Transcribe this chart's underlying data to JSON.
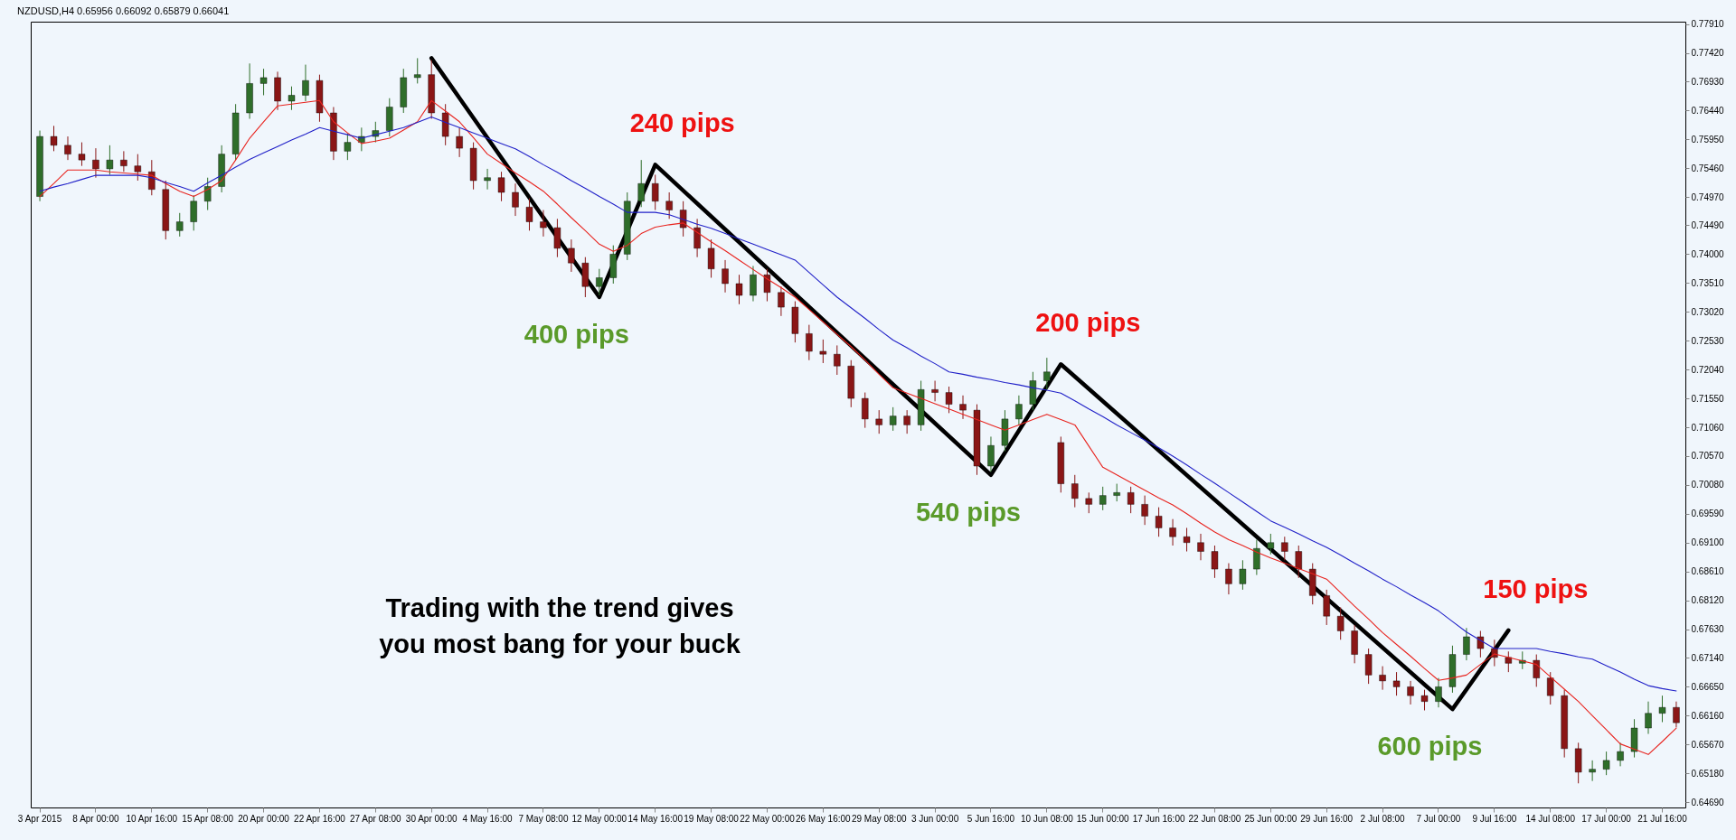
{
  "chart_data": {
    "type": "candlestick",
    "title": "NZDUSD,H4  0.65956 0.66092 0.65879 0.66041",
    "categories": [
      "3 Apr 2015",
      null,
      null,
      null,
      "8 Apr 00:00",
      null,
      null,
      null,
      "10 Apr 16:00",
      null,
      null,
      null,
      "15 Apr 08:00",
      null,
      null,
      null,
      "20 Apr 00:00",
      null,
      null,
      null,
      "22 Apr 16:00",
      null,
      null,
      null,
      "27 Apr 08:00",
      null,
      null,
      null,
      "30 Apr 00:00",
      null,
      null,
      null,
      "4 May 16:00",
      null,
      null,
      null,
      "7 May 08:00",
      null,
      null,
      null,
      "12 May 00:00",
      null,
      null,
      null,
      "14 May 16:00",
      null,
      null,
      null,
      "19 May 08:00",
      null,
      null,
      null,
      "22 May 00:00",
      null,
      null,
      null,
      "26 May 16:00",
      null,
      null,
      null,
      "29 May 08:00",
      null,
      null,
      null,
      "3 Jun 00:00",
      null,
      null,
      null,
      "5 Jun 16:00",
      null,
      null,
      null,
      "10 Jun 08:00",
      null,
      null,
      null,
      "15 Jun 00:00",
      null,
      null,
      null,
      "17 Jun 16:00",
      null,
      null,
      null,
      "22 Jun 08:00",
      null,
      null,
      null,
      "25 Jun 00:00",
      null,
      null,
      null,
      "29 Jun 16:00",
      null,
      null,
      null,
      "2 Jul 08:00",
      null,
      null,
      null,
      "7 Jul 00:00",
      null,
      null,
      null,
      "9 Jul 16:00",
      null,
      null,
      null,
      "14 Jul 08:00",
      null,
      null,
      null,
      "17 Jul 00:00",
      null,
      null,
      null,
      "21 Jul 16:00",
      null
    ],
    "ohlc": [
      [
        0.7498,
        0.761,
        0.749,
        0.76
      ],
      [
        0.76,
        0.7618,
        0.7575,
        0.7585
      ],
      [
        0.7585,
        0.76,
        0.756,
        0.757
      ],
      [
        0.757,
        0.759,
        0.755,
        0.756
      ],
      [
        0.756,
        0.758,
        0.753,
        0.7545
      ],
      [
        0.7545,
        0.7585,
        0.7535,
        0.756
      ],
      [
        0.756,
        0.7575,
        0.754,
        0.755
      ],
      [
        0.755,
        0.757,
        0.7525,
        0.754
      ],
      [
        0.754,
        0.756,
        0.75,
        0.751
      ],
      [
        0.751,
        0.7525,
        0.7425,
        0.744
      ],
      [
        0.744,
        0.747,
        0.743,
        0.7455
      ],
      [
        0.7455,
        0.75,
        0.744,
        0.749
      ],
      [
        0.749,
        0.753,
        0.7475,
        0.7515
      ],
      [
        0.7515,
        0.7585,
        0.7505,
        0.757
      ],
      [
        0.757,
        0.7655,
        0.756,
        0.764
      ],
      [
        0.764,
        0.7724,
        0.763,
        0.769
      ],
      [
        0.769,
        0.7715,
        0.767,
        0.77
      ],
      [
        0.77,
        0.771,
        0.7645,
        0.766
      ],
      [
        0.766,
        0.7685,
        0.7645,
        0.767
      ],
      [
        0.767,
        0.7722,
        0.766,
        0.7695
      ],
      [
        0.7695,
        0.7705,
        0.7625,
        0.764
      ],
      [
        0.764,
        0.765,
        0.756,
        0.7575
      ],
      [
        0.7575,
        0.7605,
        0.756,
        0.759
      ],
      [
        0.759,
        0.7615,
        0.7575,
        0.76
      ],
      [
        0.76,
        0.7625,
        0.759,
        0.761
      ],
      [
        0.761,
        0.7665,
        0.76,
        0.765
      ],
      [
        0.765,
        0.7715,
        0.764,
        0.77
      ],
      [
        0.77,
        0.7733,
        0.769,
        0.7705
      ],
      [
        0.7705,
        0.773,
        0.763,
        0.764
      ],
      [
        0.764,
        0.7655,
        0.7585,
        0.76
      ],
      [
        0.76,
        0.7615,
        0.7565,
        0.758
      ],
      [
        0.758,
        0.759,
        0.751,
        0.7525
      ],
      [
        0.7525,
        0.7545,
        0.751,
        0.753
      ],
      [
        0.753,
        0.754,
        0.749,
        0.7505
      ],
      [
        0.7505,
        0.752,
        0.7465,
        0.748
      ],
      [
        0.748,
        0.7495,
        0.744,
        0.7455
      ],
      [
        0.7455,
        0.7475,
        0.743,
        0.7445
      ],
      [
        0.7445,
        0.746,
        0.7395,
        0.741
      ],
      [
        0.741,
        0.7425,
        0.737,
        0.7385
      ],
      [
        0.7385,
        0.7395,
        0.7327,
        0.7345
      ],
      [
        0.7345,
        0.7375,
        0.733,
        0.736
      ],
      [
        0.736,
        0.7415,
        0.735,
        0.74
      ],
      [
        0.74,
        0.7505,
        0.739,
        0.749
      ],
      [
        0.749,
        0.756,
        0.748,
        0.752
      ],
      [
        0.752,
        0.7535,
        0.7475,
        0.749
      ],
      [
        0.749,
        0.7505,
        0.746,
        0.7475
      ],
      [
        0.7475,
        0.749,
        0.743,
        0.7445
      ],
      [
        0.7445,
        0.746,
        0.7395,
        0.741
      ],
      [
        0.741,
        0.7425,
        0.736,
        0.7375
      ],
      [
        0.7375,
        0.739,
        0.7335,
        0.735
      ],
      [
        0.735,
        0.7365,
        0.7315,
        0.733
      ],
      [
        0.733,
        0.738,
        0.732,
        0.7365
      ],
      [
        0.7365,
        0.7375,
        0.732,
        0.7335
      ],
      [
        0.7335,
        0.7345,
        0.7295,
        0.731
      ],
      [
        0.731,
        0.732,
        0.725,
        0.7265
      ],
      [
        0.7265,
        0.728,
        0.722,
        0.7235
      ],
      [
        0.7235,
        0.7255,
        0.7215,
        0.723
      ],
      [
        0.723,
        0.7245,
        0.7195,
        0.721
      ],
      [
        0.721,
        0.722,
        0.714,
        0.7155
      ],
      [
        0.7155,
        0.7165,
        0.7105,
        0.712
      ],
      [
        0.712,
        0.7135,
        0.7095,
        0.711
      ],
      [
        0.711,
        0.714,
        0.71,
        0.7125
      ],
      [
        0.7125,
        0.7135,
        0.7095,
        0.711
      ],
      [
        0.711,
        0.7185,
        0.71,
        0.717
      ],
      [
        0.717,
        0.7185,
        0.715,
        0.7165
      ],
      [
        0.7165,
        0.7175,
        0.713,
        0.7145
      ],
      [
        0.7145,
        0.716,
        0.712,
        0.7135
      ],
      [
        0.7135,
        0.7145,
        0.7025,
        0.704
      ],
      [
        0.704,
        0.709,
        0.703,
        0.7075
      ],
      [
        0.7075,
        0.7135,
        0.7065,
        0.712
      ],
      [
        0.712,
        0.716,
        0.711,
        0.7145
      ],
      [
        0.7145,
        0.72,
        0.7135,
        0.7185
      ],
      [
        0.7185,
        0.7224,
        0.717,
        0.72
      ],
      [
        0.708,
        0.709,
        0.6995,
        0.701
      ],
      [
        0.701,
        0.7025,
        0.697,
        0.6985
      ],
      [
        0.6985,
        0.6995,
        0.696,
        0.6975
      ],
      [
        0.6975,
        0.7005,
        0.6965,
        0.699
      ],
      [
        0.699,
        0.701,
        0.698,
        0.6995
      ],
      [
        0.6995,
        0.7005,
        0.696,
        0.6975
      ],
      [
        0.6975,
        0.699,
        0.694,
        0.6955
      ],
      [
        0.6955,
        0.697,
        0.692,
        0.6935
      ],
      [
        0.6935,
        0.695,
        0.6905,
        0.692
      ],
      [
        0.692,
        0.6935,
        0.6895,
        0.691
      ],
      [
        0.691,
        0.6925,
        0.688,
        0.6895
      ],
      [
        0.6895,
        0.6905,
        0.685,
        0.6865
      ],
      [
        0.6865,
        0.6875,
        0.6822,
        0.684
      ],
      [
        0.684,
        0.688,
        0.683,
        0.6865
      ],
      [
        0.6865,
        0.6915,
        0.6855,
        0.69
      ],
      [
        0.69,
        0.6925,
        0.689,
        0.691
      ],
      [
        0.691,
        0.692,
        0.688,
        0.6895
      ],
      [
        0.6895,
        0.6905,
        0.685,
        0.6865
      ],
      [
        0.6865,
        0.6875,
        0.6805,
        0.682
      ],
      [
        0.682,
        0.683,
        0.677,
        0.6785
      ],
      [
        0.6785,
        0.68,
        0.6745,
        0.676
      ],
      [
        0.676,
        0.677,
        0.6705,
        0.672
      ],
      [
        0.672,
        0.673,
        0.667,
        0.6685
      ],
      [
        0.6685,
        0.67,
        0.666,
        0.6675
      ],
      [
        0.6675,
        0.669,
        0.665,
        0.6665
      ],
      [
        0.6665,
        0.6675,
        0.6635,
        0.665
      ],
      [
        0.665,
        0.666,
        0.6625,
        0.664
      ],
      [
        0.664,
        0.668,
        0.663,
        0.6665
      ],
      [
        0.6665,
        0.6735,
        0.6655,
        0.672
      ],
      [
        0.672,
        0.6765,
        0.671,
        0.675
      ],
      [
        0.675,
        0.676,
        0.6715,
        0.673
      ],
      [
        0.673,
        0.6745,
        0.67,
        0.6715
      ],
      [
        0.6715,
        0.6725,
        0.669,
        0.6705
      ],
      [
        0.6705,
        0.6725,
        0.6695,
        0.671
      ],
      [
        0.671,
        0.672,
        0.6665,
        0.668
      ],
      [
        0.668,
        0.669,
        0.6635,
        0.665
      ],
      [
        0.665,
        0.666,
        0.6545,
        0.656
      ],
      [
        0.656,
        0.657,
        0.6501,
        0.652
      ],
      [
        0.652,
        0.654,
        0.6505,
        0.6525
      ],
      [
        0.6525,
        0.6555,
        0.6515,
        0.654
      ],
      [
        0.654,
        0.657,
        0.653,
        0.6555
      ],
      [
        0.6555,
        0.661,
        0.6545,
        0.6595
      ],
      [
        0.6595,
        0.664,
        0.6585,
        0.662
      ],
      [
        0.662,
        0.665,
        0.6605,
        0.663
      ],
      [
        0.663,
        0.664,
        0.6596,
        0.6604
      ]
    ],
    "series": [
      {
        "type": "line",
        "color": "#e8231e",
        "values": [
          0.7498,
          0.752,
          0.7543,
          0.7543,
          0.7543,
          0.754,
          0.7538,
          0.7536,
          0.7534,
          0.752,
          0.7507,
          0.7498,
          0.751,
          0.7525,
          0.756,
          0.7597,
          0.7625,
          0.7652,
          0.7655,
          0.7658,
          0.7661,
          0.7625,
          0.7606,
          0.7588,
          0.7592,
          0.7597,
          0.7611,
          0.7625,
          0.7661,
          0.7643,
          0.7625,
          0.7598,
          0.757,
          0.7554,
          0.7538,
          0.7523,
          0.7507,
          0.7485,
          0.7462,
          0.744,
          0.7417,
          0.7405,
          0.7415,
          0.7435,
          0.7446,
          0.745,
          0.7453,
          0.7437,
          0.7421,
          0.7406,
          0.739,
          0.7374,
          0.7358,
          0.7343,
          0.7327,
          0.7306,
          0.7285,
          0.7264,
          0.7243,
          0.722,
          0.7196,
          0.7173,
          0.7164,
          0.7155,
          0.7146,
          0.7137,
          0.7128,
          0.7119,
          0.711,
          0.7101,
          0.711,
          0.7119,
          0.7128,
          0.7119,
          0.711,
          0.7074,
          0.7038,
          0.7025,
          0.7012,
          0.6999,
          0.6986,
          0.6974,
          0.6959,
          0.6943,
          0.6928,
          0.6915,
          0.6905,
          0.6894,
          0.6884,
          0.6875,
          0.6866,
          0.6857,
          0.6848,
          0.6825,
          0.6802,
          0.678,
          0.6757,
          0.6737,
          0.6717,
          0.6696,
          0.6676,
          0.668,
          0.6685,
          0.6703,
          0.6721,
          0.6715,
          0.6709,
          0.6703,
          0.6682,
          0.6661,
          0.664,
          0.6616,
          0.6592,
          0.6568,
          0.6559,
          0.655,
          0.6572,
          0.6595
        ]
      },
      {
        "type": "line",
        "color": "#2020c8",
        "values": [
          0.7507,
          0.7514,
          0.752,
          0.7527,
          0.7534,
          0.7534,
          0.7534,
          0.7534,
          0.753,
          0.7522,
          0.7515,
          0.7507,
          0.7521,
          0.7534,
          0.7548,
          0.7561,
          0.7572,
          0.7583,
          0.7594,
          0.7604,
          0.7615,
          0.7609,
          0.7603,
          0.7597,
          0.7603,
          0.7609,
          0.7615,
          0.7624,
          0.7633,
          0.7624,
          0.7615,
          0.7606,
          0.7597,
          0.7588,
          0.7579,
          0.7566,
          0.7552,
          0.7539,
          0.7525,
          0.7512,
          0.7498,
          0.7485,
          0.7471,
          0.7471,
          0.7471,
          0.7467,
          0.7459,
          0.7451,
          0.7444,
          0.7435,
          0.7426,
          0.7417,
          0.7408,
          0.7399,
          0.739,
          0.7369,
          0.7348,
          0.7327,
          0.7309,
          0.7291,
          0.7272,
          0.7254,
          0.7241,
          0.7227,
          0.7214,
          0.72,
          0.7196,
          0.7191,
          0.7187,
          0.7182,
          0.7178,
          0.7173,
          0.7169,
          0.7164,
          0.7151,
          0.7137,
          0.7124,
          0.711,
          0.7097,
          0.7084,
          0.7071,
          0.7057,
          0.7042,
          0.7026,
          0.7011,
          0.6995,
          0.6979,
          0.6963,
          0.6947,
          0.6936,
          0.6925,
          0.6913,
          0.6902,
          0.6889,
          0.6875,
          0.6862,
          0.6848,
          0.6835,
          0.6821,
          0.6808,
          0.6794,
          0.6776,
          0.6758,
          0.6744,
          0.673,
          0.673,
          0.673,
          0.673,
          0.6725,
          0.6721,
          0.6716,
          0.6712,
          0.6701,
          0.669,
          0.6678,
          0.6667,
          0.6662,
          0.6658
        ]
      },
      {
        "type": "line",
        "color": "#000000",
        "values": [
          null,
          null,
          null,
          null,
          null,
          null,
          null,
          null,
          null,
          null,
          null,
          null,
          null,
          null,
          null,
          null,
          null,
          null,
          null,
          null,
          null,
          null,
          null,
          null,
          null,
          null,
          null,
          null,
          0.7733,
          null,
          null,
          null,
          null,
          null,
          null,
          null,
          null,
          null,
          null,
          null,
          0.7327,
          null,
          null,
          null,
          0.7552,
          null,
          null,
          null,
          null,
          null,
          null,
          null,
          null,
          null,
          null,
          null,
          null,
          null,
          null,
          null,
          null,
          null,
          null,
          null,
          null,
          null,
          null,
          null,
          0.7025,
          null,
          null,
          null,
          null,
          0.7213,
          null,
          null,
          null,
          null,
          null,
          null,
          null,
          null,
          null,
          null,
          null,
          null,
          null,
          null,
          null,
          null,
          null,
          null,
          null,
          null,
          null,
          null,
          null,
          null,
          null,
          null,
          null,
          0.6627,
          null,
          null,
          null,
          0.6761,
          null,
          null,
          null,
          null,
          null,
          null,
          null,
          null,
          null,
          null,
          null,
          null
        ]
      }
    ],
    "ylim": [
      0.646,
      0.7795
    ],
    "yticks": [
      {
        "value": 0.6469,
        "label": "0.64690"
      },
      {
        "value": 0.6518,
        "label": "0.65180"
      },
      {
        "value": 0.6567,
        "label": "0.65670"
      },
      {
        "value": 0.6616,
        "label": "0.66160"
      },
      {
        "value": 0.6665,
        "label": "0.66650"
      },
      {
        "value": 0.6714,
        "label": "0.67140"
      },
      {
        "value": 0.6763,
        "label": "0.67630"
      },
      {
        "value": 0.6812,
        "label": "0.68120"
      },
      {
        "value": 0.6861,
        "label": "0.68610"
      },
      {
        "value": 0.691,
        "label": "0.69100"
      },
      {
        "value": 0.6959,
        "label": "0.69590"
      },
      {
        "value": 0.7008,
        "label": "0.70080"
      },
      {
        "value": 0.7057,
        "label": "0.70570"
      },
      {
        "value": 0.7106,
        "label": "0.71060"
      },
      {
        "value": 0.7155,
        "label": "0.71550"
      },
      {
        "value": 0.7204,
        "label": "0.72040"
      },
      {
        "value": 0.7253,
        "label": "0.72530"
      },
      {
        "value": 0.7302,
        "label": "0.73020"
      },
      {
        "value": 0.7351,
        "label": "0.73510"
      },
      {
        "value": 0.74,
        "label": "0.74000"
      },
      {
        "value": 0.7449,
        "label": "0.74490"
      },
      {
        "value": 0.7497,
        "label": "0.74970"
      },
      {
        "value": 0.7546,
        "label": "0.75460"
      },
      {
        "value": 0.7595,
        "label": "0.75950"
      },
      {
        "value": 0.7644,
        "label": "0.76440"
      },
      {
        "value": 0.7693,
        "label": "0.76930"
      },
      {
        "value": 0.7742,
        "label": "0.77420"
      },
      {
        "value": 0.7791,
        "label": "0.77910"
      }
    ],
    "annotations": [
      "400 pips",
      "240 pips",
      "540 pips",
      "200 pips",
      "600 pips",
      "150 pips",
      "Trading with the trend gives\nyou most bang for your buck"
    ]
  }
}
